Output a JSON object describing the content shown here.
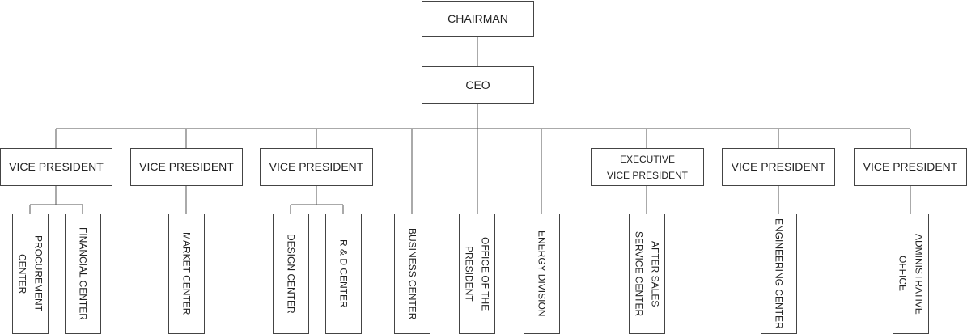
{
  "nodes": [
    {
      "lines": [
        "CHAIRMAN"
      ]
    },
    {
      "lines": [
        "CEO"
      ]
    },
    {
      "lines": [
        "VICE PRESIDENT"
      ]
    },
    {
      "lines": [
        "VICE PRESIDENT"
      ]
    },
    {
      "lines": [
        "VICE PRESIDENT"
      ]
    },
    {
      "lines": [
        "EXECUTIVE",
        "VICE PRESIDENT"
      ]
    },
    {
      "lines": [
        "VICE PRESIDENT"
      ]
    },
    {
      "lines": [
        "VICE PRESIDENT"
      ]
    },
    {
      "lines": [
        "PROCUREMENT",
        "CENTER"
      ]
    },
    {
      "lines": [
        "FINANCIAL CENTER"
      ]
    },
    {
      "lines": [
        "MARKET CENTER"
      ]
    },
    {
      "lines": [
        "DESIGN CENTER"
      ]
    },
    {
      "lines": [
        "R & D CENTER"
      ]
    },
    {
      "lines": [
        "BUSINESS CENTER"
      ]
    },
    {
      "lines": [
        "OFFICE OF THE",
        "PRESIDENT"
      ]
    },
    {
      "lines": [
        "ENERGY DIVISION"
      ]
    },
    {
      "lines": [
        "AFTER SALES",
        "SERVICE CENTER"
      ]
    },
    {
      "lines": [
        "ENGINEERING CENTER"
      ]
    },
    {
      "lines": [
        "ADMINISTRATIVE",
        "OFFICE"
      ]
    }
  ]
}
